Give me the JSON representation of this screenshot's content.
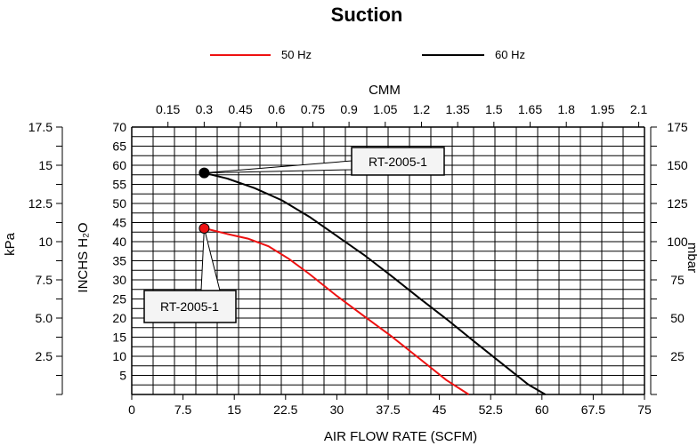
{
  "chart_data": {
    "type": "line",
    "title": "Suction",
    "xlabel": "AIR FLOW RATE (SCFM)",
    "x2label": "CMM",
    "ylabel": "INCHS H₂O",
    "ylabel_left_outer": "kPa",
    "ylabel_right": "mbar",
    "xlim": [
      0,
      75
    ],
    "ylim": [
      0,
      70
    ],
    "x_ticks": [
      "0",
      "7.5",
      "15",
      "22.5",
      "30",
      "37.5",
      "45",
      "52.5",
      "60",
      "67.5",
      "75"
    ],
    "x2_ticks": [
      "0.15",
      "0.3",
      "0.45",
      "0.6",
      "0.75",
      "0.9",
      "1.05",
      "1.2",
      "1.35",
      "1.5",
      "1.65",
      "1.8",
      "1.95",
      "2.1"
    ],
    "y_ticks": [
      "5",
      "10",
      "15",
      "20",
      "25",
      "30",
      "35",
      "40",
      "45",
      "50",
      "55",
      "60",
      "65",
      "70"
    ],
    "kpa_ticks": [
      "2.5",
      "5.0",
      "7.5",
      "10",
      "12.5",
      "15",
      "17.5"
    ],
    "mbar_ticks": [
      "25",
      "50",
      "75",
      "100",
      "125",
      "150",
      "175"
    ],
    "legend_position": "top-center",
    "grid": true,
    "series": [
      {
        "name": "50 Hz",
        "color": "#ee1111",
        "x": [
          10.6,
          14,
          17,
          20,
          23,
          26,
          30,
          34,
          38,
          42,
          46,
          49.3
        ],
        "y": [
          43.5,
          42,
          40.8,
          38.8,
          35.5,
          31.5,
          25.8,
          20.5,
          15.2,
          9.5,
          3.8,
          0
        ]
      },
      {
        "name": "60 Hz",
        "color": "#000000",
        "x": [
          10.6,
          14,
          18,
          22,
          26,
          30,
          34,
          38,
          42,
          46,
          50,
          54,
          58,
          60.5
        ],
        "y": [
          58,
          56.5,
          54,
          50.8,
          46.5,
          41.5,
          36.5,
          31,
          25.3,
          19.8,
          14,
          8.3,
          2.6,
          0
        ]
      }
    ],
    "annotations": [
      {
        "text": "RT-2005-1",
        "color": "#000000"
      },
      {
        "text": "RT-2005-1",
        "color": "#ee1111"
      }
    ]
  }
}
